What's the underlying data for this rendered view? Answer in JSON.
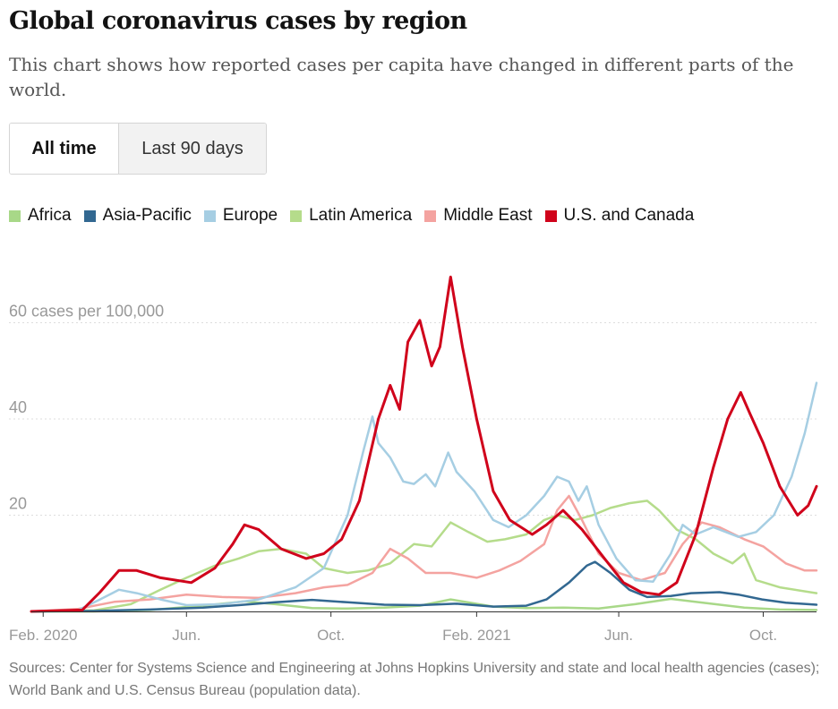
{
  "header": {
    "title": "Global coronavirus cases by region",
    "subtitle": "This chart shows how reported cases per capita have changed in different parts of the world."
  },
  "toggle": {
    "options": [
      {
        "label": "All time",
        "active": true
      },
      {
        "label": "Last 90 days",
        "active": false
      }
    ]
  },
  "colors": {
    "grid": "#dddddd",
    "tick_text": "#999999",
    "axis": "#333333"
  },
  "chart_data": {
    "type": "line",
    "title": "Global coronavirus cases by region",
    "ylabel": "",
    "y_unit_label": "60 cases per 100,000",
    "ylim": [
      0,
      72
    ],
    "y_ticks": [
      {
        "value": 20,
        "label": "20"
      },
      {
        "value": 40,
        "label": "40"
      },
      {
        "value": 60,
        "label": "60 cases per 100,000"
      }
    ],
    "x_ticks": [
      {
        "date": "2020-02-01",
        "label": "Feb. 2020"
      },
      {
        "date": "2020-06-01",
        "label": "Jun."
      },
      {
        "date": "2020-10-01",
        "label": "Oct."
      },
      {
        "date": "2021-02-01",
        "label": "Feb. 2021"
      },
      {
        "date": "2021-06-01",
        "label": "Jun."
      },
      {
        "date": "2021-10-01",
        "label": "Oct."
      }
    ],
    "x_range": [
      "2020-01-22",
      "2021-11-15"
    ],
    "legend_position": "top",
    "grid": true,
    "series": [
      {
        "name": "Africa",
        "color": "#a8d888",
        "points": [
          [
            "2020-01-22",
            0
          ],
          [
            "2020-03-15",
            0
          ],
          [
            "2020-05-01",
            0.3
          ],
          [
            "2020-06-15",
            1.2
          ],
          [
            "2020-07-20",
            2.1
          ],
          [
            "2020-08-15",
            1.5
          ],
          [
            "2020-09-15",
            0.7
          ],
          [
            "2020-10-15",
            0.6
          ],
          [
            "2020-11-15",
            0.8
          ],
          [
            "2020-12-15",
            1.2
          ],
          [
            "2021-01-10",
            2.5
          ],
          [
            "2021-02-15",
            1.0
          ],
          [
            "2021-03-15",
            0.7
          ],
          [
            "2021-04-15",
            0.8
          ],
          [
            "2021-05-15",
            0.6
          ],
          [
            "2021-06-15",
            1.5
          ],
          [
            "2021-07-15",
            2.6
          ],
          [
            "2021-08-15",
            1.7
          ],
          [
            "2021-09-15",
            0.8
          ],
          [
            "2021-10-15",
            0.4
          ],
          [
            "2021-11-15",
            0.3
          ]
        ]
      },
      {
        "name": "Asia-Pacific",
        "color": "#326891",
        "points": [
          [
            "2020-01-22",
            0
          ],
          [
            "2020-03-15",
            0.1
          ],
          [
            "2020-05-01",
            0.4
          ],
          [
            "2020-06-15",
            0.8
          ],
          [
            "2020-07-15",
            1.3
          ],
          [
            "2020-08-15",
            1.9
          ],
          [
            "2020-09-15",
            2.4
          ],
          [
            "2020-10-15",
            1.9
          ],
          [
            "2020-11-15",
            1.4
          ],
          [
            "2020-12-15",
            1.3
          ],
          [
            "2021-01-15",
            1.6
          ],
          [
            "2021-02-15",
            1.0
          ],
          [
            "2021-03-15",
            1.2
          ],
          [
            "2021-04-01",
            2.5
          ],
          [
            "2021-04-20",
            6.0
          ],
          [
            "2021-05-05",
            9.5
          ],
          [
            "2021-05-12",
            10.3
          ],
          [
            "2021-05-25",
            8.0
          ],
          [
            "2021-06-10",
            4.5
          ],
          [
            "2021-06-25",
            3.0
          ],
          [
            "2021-07-15",
            3.2
          ],
          [
            "2021-08-01",
            3.8
          ],
          [
            "2021-08-25",
            4.0
          ],
          [
            "2021-09-10",
            3.5
          ],
          [
            "2021-09-30",
            2.5
          ],
          [
            "2021-10-20",
            1.8
          ],
          [
            "2021-11-15",
            1.4
          ]
        ]
      },
      {
        "name": "Europe",
        "color": "#a6cee3",
        "points": [
          [
            "2020-01-22",
            0
          ],
          [
            "2020-03-01",
            0.2
          ],
          [
            "2020-03-20",
            2.5
          ],
          [
            "2020-04-05",
            4.5
          ],
          [
            "2020-04-20",
            3.8
          ],
          [
            "2020-05-10",
            2.5
          ],
          [
            "2020-06-01",
            1.3
          ],
          [
            "2020-07-01",
            1.5
          ],
          [
            "2020-08-01",
            2.5
          ],
          [
            "2020-09-01",
            5.0
          ],
          [
            "2020-09-25",
            9.0
          ],
          [
            "2020-10-15",
            20.0
          ],
          [
            "2020-10-28",
            33.0
          ],
          [
            "2020-11-05",
            40.5
          ],
          [
            "2020-11-10",
            35.0
          ],
          [
            "2020-11-20",
            32.0
          ],
          [
            "2020-12-01",
            27.0
          ],
          [
            "2020-12-10",
            26.5
          ],
          [
            "2020-12-20",
            28.5
          ],
          [
            "2020-12-28",
            26.0
          ],
          [
            "2021-01-08",
            33.0
          ],
          [
            "2021-01-15",
            29.0
          ],
          [
            "2021-01-30",
            25.0
          ],
          [
            "2021-02-15",
            19.0
          ],
          [
            "2021-02-28",
            17.5
          ],
          [
            "2021-03-15",
            20.0
          ],
          [
            "2021-03-30",
            24.0
          ],
          [
            "2021-04-10",
            28.0
          ],
          [
            "2021-04-20",
            27.0
          ],
          [
            "2021-04-28",
            23.0
          ],
          [
            "2021-05-05",
            26.0
          ],
          [
            "2021-05-15",
            18.0
          ],
          [
            "2021-05-30",
            11.0
          ],
          [
            "2021-06-15",
            6.5
          ],
          [
            "2021-06-30",
            6.2
          ],
          [
            "2021-07-15",
            12.0
          ],
          [
            "2021-07-25",
            18.0
          ],
          [
            "2021-08-05",
            16.0
          ],
          [
            "2021-08-20",
            17.5
          ],
          [
            "2021-09-10",
            15.5
          ],
          [
            "2021-09-25",
            16.5
          ],
          [
            "2021-10-10",
            20.0
          ],
          [
            "2021-10-25",
            28.0
          ],
          [
            "2021-11-05",
            37.0
          ],
          [
            "2021-11-15",
            47.5
          ]
        ]
      },
      {
        "name": "Latin America",
        "color": "#b5dc8b",
        "points": [
          [
            "2020-01-22",
            0
          ],
          [
            "2020-03-15",
            0.2
          ],
          [
            "2020-04-15",
            1.5
          ],
          [
            "2020-05-10",
            4.5
          ],
          [
            "2020-06-01",
            7.0
          ],
          [
            "2020-06-25",
            9.5
          ],
          [
            "2020-07-15",
            11.0
          ],
          [
            "2020-08-01",
            12.5
          ],
          [
            "2020-08-20",
            13.0
          ],
          [
            "2020-09-10",
            12.0
          ],
          [
            "2020-09-25",
            9.0
          ],
          [
            "2020-10-15",
            8.0
          ],
          [
            "2020-11-01",
            8.5
          ],
          [
            "2020-11-20",
            10.0
          ],
          [
            "2020-12-10",
            14.0
          ],
          [
            "2020-12-25",
            13.5
          ],
          [
            "2021-01-10",
            18.5
          ],
          [
            "2021-01-25",
            16.5
          ],
          [
            "2021-02-10",
            14.5
          ],
          [
            "2021-02-25",
            15.0
          ],
          [
            "2021-03-15",
            16.0
          ],
          [
            "2021-03-30",
            19.0
          ],
          [
            "2021-04-10",
            20.0
          ],
          [
            "2021-04-25",
            19.0
          ],
          [
            "2021-05-10",
            20.0
          ],
          [
            "2021-05-25",
            21.5
          ],
          [
            "2021-06-10",
            22.5
          ],
          [
            "2021-06-25",
            23.0
          ],
          [
            "2021-07-05",
            21.0
          ],
          [
            "2021-07-20",
            17.0
          ],
          [
            "2021-08-05",
            15.0
          ],
          [
            "2021-08-20",
            12.0
          ],
          [
            "2021-09-05",
            10.0
          ],
          [
            "2021-09-15",
            12.0
          ],
          [
            "2021-09-25",
            6.5
          ],
          [
            "2021-10-15",
            5.0
          ],
          [
            "2021-11-15",
            3.8
          ]
        ]
      },
      {
        "name": "Middle East",
        "color": "#f4a3a0",
        "points": [
          [
            "2020-01-22",
            0
          ],
          [
            "2020-03-01",
            0.5
          ],
          [
            "2020-04-01",
            2.0
          ],
          [
            "2020-05-01",
            2.5
          ],
          [
            "2020-06-01",
            3.5
          ],
          [
            "2020-07-01",
            3.0
          ],
          [
            "2020-08-01",
            2.8
          ],
          [
            "2020-09-01",
            3.8
          ],
          [
            "2020-09-25",
            5.0
          ],
          [
            "2020-10-15",
            5.5
          ],
          [
            "2020-11-05",
            8.0
          ],
          [
            "2020-11-20",
            13.0
          ],
          [
            "2020-12-05",
            11.0
          ],
          [
            "2020-12-20",
            8.0
          ],
          [
            "2021-01-10",
            8.0
          ],
          [
            "2021-02-01",
            7.0
          ],
          [
            "2021-02-20",
            8.5
          ],
          [
            "2021-03-10",
            10.5
          ],
          [
            "2021-03-30",
            14.0
          ],
          [
            "2021-04-10",
            21.0
          ],
          [
            "2021-04-20",
            24.0
          ],
          [
            "2021-05-01",
            19.0
          ],
          [
            "2021-05-15",
            12.0
          ],
          [
            "2021-06-01",
            8.0
          ],
          [
            "2021-06-20",
            6.5
          ],
          [
            "2021-07-10",
            8.0
          ],
          [
            "2021-07-25",
            14.0
          ],
          [
            "2021-08-10",
            18.5
          ],
          [
            "2021-08-25",
            17.5
          ],
          [
            "2021-09-15",
            15.0
          ],
          [
            "2021-10-01",
            13.5
          ],
          [
            "2021-10-20",
            10.0
          ],
          [
            "2021-11-05",
            8.5
          ],
          [
            "2021-11-15",
            8.5
          ]
        ]
      },
      {
        "name": "U.S. and Canada",
        "color": "#d0021b",
        "points": [
          [
            "2020-01-22",
            0
          ],
          [
            "2020-03-05",
            0.3
          ],
          [
            "2020-03-20",
            4.0
          ],
          [
            "2020-04-05",
            8.5
          ],
          [
            "2020-04-20",
            8.5
          ],
          [
            "2020-05-10",
            7.0
          ],
          [
            "2020-06-05",
            6.0
          ],
          [
            "2020-06-25",
            9.0
          ],
          [
            "2020-07-10",
            14.0
          ],
          [
            "2020-07-20",
            18.0
          ],
          [
            "2020-08-01",
            17.0
          ],
          [
            "2020-08-20",
            13.0
          ],
          [
            "2020-09-10",
            11.0
          ],
          [
            "2020-09-25",
            12.0
          ],
          [
            "2020-10-10",
            15.0
          ],
          [
            "2020-10-25",
            23.0
          ],
          [
            "2020-11-10",
            40.0
          ],
          [
            "2020-11-20",
            47.0
          ],
          [
            "2020-11-28",
            42.0
          ],
          [
            "2020-12-05",
            56.0
          ],
          [
            "2020-12-15",
            60.5
          ],
          [
            "2020-12-25",
            51.0
          ],
          [
            "2021-01-01",
            55.0
          ],
          [
            "2021-01-10",
            69.5
          ],
          [
            "2021-01-20",
            55.0
          ],
          [
            "2021-02-01",
            40.0
          ],
          [
            "2021-02-15",
            25.0
          ],
          [
            "2021-03-01",
            19.0
          ],
          [
            "2021-03-20",
            16.0
          ],
          [
            "2021-04-01",
            18.0
          ],
          [
            "2021-04-15",
            21.0
          ],
          [
            "2021-05-01",
            17.0
          ],
          [
            "2021-05-20",
            11.0
          ],
          [
            "2021-06-05",
            6.0
          ],
          [
            "2021-06-20",
            4.0
          ],
          [
            "2021-07-05",
            3.5
          ],
          [
            "2021-07-20",
            6.0
          ],
          [
            "2021-08-05",
            16.0
          ],
          [
            "2021-08-20",
            30.0
          ],
          [
            "2021-09-01",
            40.0
          ],
          [
            "2021-09-12",
            45.5
          ],
          [
            "2021-09-20",
            41.0
          ],
          [
            "2021-10-01",
            35.0
          ],
          [
            "2021-10-15",
            26.0
          ],
          [
            "2021-10-30",
            20.0
          ],
          [
            "2021-11-08",
            22.0
          ],
          [
            "2021-11-15",
            26.0
          ]
        ]
      }
    ]
  },
  "footer": {
    "source": "Sources: Center for Systems Science and Engineering at Johns Hopkins University and state and local health agencies (cases); World Bank and U.S. Census Bureau (population data)."
  }
}
